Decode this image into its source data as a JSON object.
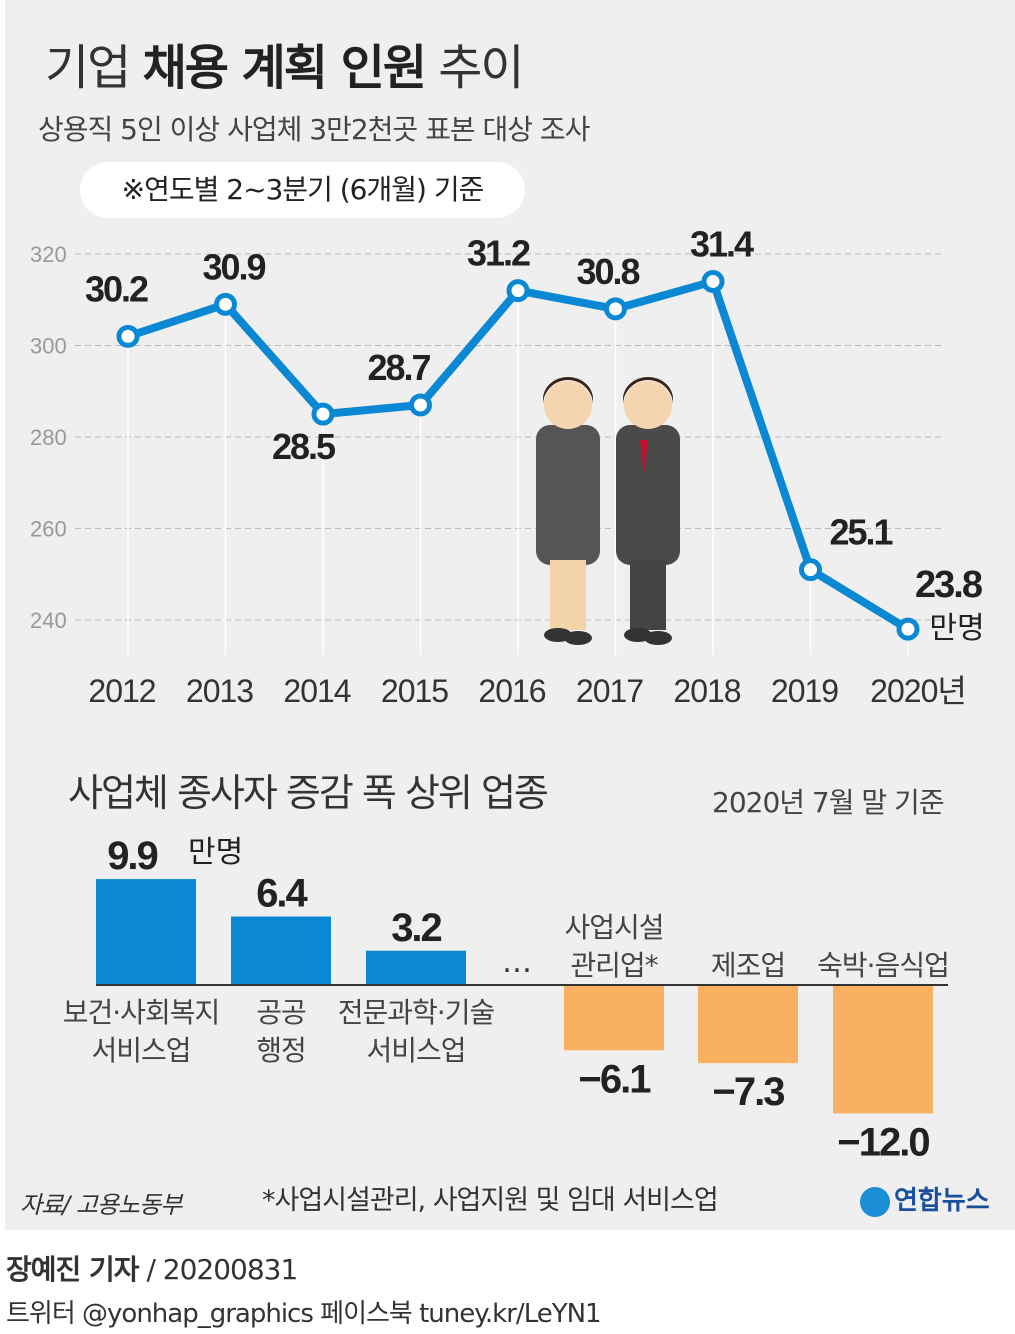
{
  "title": {
    "light1": "기업",
    "bold": "채용 계획 인원",
    "light2": "추이"
  },
  "subtitle": "상용직 5인 이상 사업체 3만2천곳 표본 대상 조사",
  "note": "※연도별 2~3분기 (6개월) 기준",
  "colors": {
    "line": "#0a88d4",
    "positive": "#0a88d4",
    "negative": "#f9b060",
    "background": "#efefef"
  },
  "chart_data": [
    {
      "type": "line",
      "categories": [
        "2012",
        "2013",
        "2014",
        "2015",
        "2016",
        "2017",
        "2018",
        "2019",
        "2020년"
      ],
      "values": [
        302,
        309,
        285,
        287,
        312,
        308,
        314,
        251,
        238
      ],
      "data_labels": [
        "30.2",
        "30.9",
        "28.5",
        "28.7",
        "31.2",
        "30.8",
        "31.4",
        "25.1",
        "23.8"
      ],
      "unit_label": "만명",
      "yticks": [
        240,
        260,
        280,
        300,
        320
      ],
      "ylim": [
        230,
        325
      ],
      "grid": true
    },
    {
      "type": "bar",
      "title": "사업체 종사자 증감 폭 상위 업종",
      "subtitle": "2020년 7월 말 기준",
      "categories": [
        "보건·사회복지 서비스업",
        "공공 행정",
        "전문과학·기술 서비스업",
        "사업시설 관리업*",
        "제조업",
        "숙박·음식업"
      ],
      "category_lines": [
        [
          "보건·사회복지",
          "서비스업"
        ],
        [
          "공공",
          "행정"
        ],
        [
          "전문과학·기술",
          "서비스업"
        ],
        [
          "사업시설",
          "관리업*"
        ],
        [
          "제조업"
        ],
        [
          "숙박·음식업"
        ]
      ],
      "values": [
        9.9,
        6.4,
        3.2,
        -6.1,
        -7.3,
        -12.0
      ],
      "data_labels": [
        "9.9",
        "6.4",
        "3.2",
        "−6.1",
        "−7.3",
        "−12.0"
      ],
      "unit_label": "만명",
      "ellipsis": "…"
    }
  ],
  "footer": {
    "source": "자료/ 고용노동부",
    "footnote": "*사업시설관리, 사업지원 및 임대 서비스업",
    "logo": "연합뉴스"
  },
  "byline": {
    "reporter": "장예진 기자",
    "date": " / 20200831"
  },
  "social": "트위터 @yonhap_graphics  페이스북 tuney.kr/LeYN1"
}
